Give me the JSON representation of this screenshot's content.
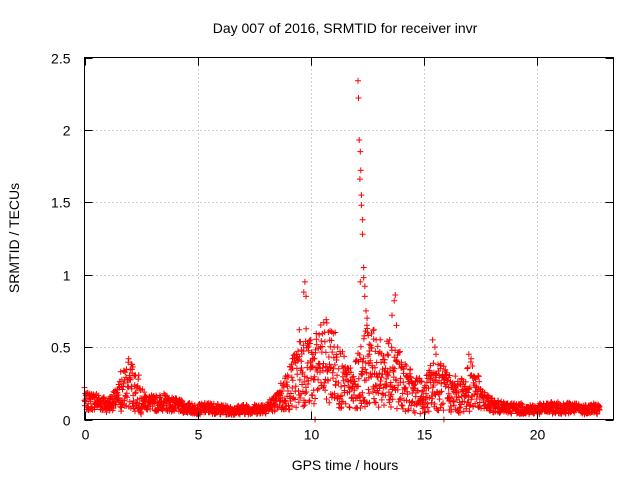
{
  "chart_data": {
    "type": "scatter",
    "title": "Day 007 of 2016, SRMTID for receiver invr",
    "xlabel": "GPS time / hours",
    "ylabel": "SRMTID / TECUs",
    "xlim": [
      0,
      23.4
    ],
    "ylim": [
      0,
      2.5
    ],
    "xticks": [
      0,
      5,
      10,
      15,
      20
    ],
    "yticks": [
      0,
      0.5,
      1,
      1.5,
      2,
      2.5
    ],
    "xtick_labels": [
      "0",
      "5",
      "10",
      "15",
      "20"
    ],
    "ytick_labels": [
      "0",
      "0.5",
      "1",
      "1.5",
      "2",
      "2.5"
    ],
    "grid": true,
    "marker": "+",
    "color": "#ff0000",
    "series": [
      {
        "name": "SRMTID",
        "profile": [
          [
            0.0,
            0.12
          ],
          [
            0.5,
            0.13
          ],
          [
            1.0,
            0.1
          ],
          [
            1.5,
            0.15
          ],
          [
            1.8,
            0.22
          ],
          [
            2.0,
            0.25
          ],
          [
            2.3,
            0.2
          ],
          [
            2.6,
            0.13
          ],
          [
            3.0,
            0.11
          ],
          [
            3.5,
            0.12
          ],
          [
            4.0,
            0.1
          ],
          [
            4.5,
            0.08
          ],
          [
            5.0,
            0.07
          ],
          [
            5.5,
            0.08
          ],
          [
            6.0,
            0.07
          ],
          [
            6.5,
            0.06
          ],
          [
            7.0,
            0.07
          ],
          [
            7.5,
            0.07
          ],
          [
            8.0,
            0.08
          ],
          [
            8.5,
            0.12
          ],
          [
            9.0,
            0.2
          ],
          [
            9.3,
            0.28
          ],
          [
            9.6,
            0.35
          ],
          [
            9.8,
            0.38
          ],
          [
            10.0,
            0.3
          ],
          [
            10.3,
            0.35
          ],
          [
            10.6,
            0.4
          ],
          [
            11.0,
            0.38
          ],
          [
            11.3,
            0.3
          ],
          [
            11.6,
            0.22
          ],
          [
            11.9,
            0.2
          ],
          [
            12.2,
            0.3
          ],
          [
            12.5,
            0.38
          ],
          [
            12.8,
            0.35
          ],
          [
            13.2,
            0.3
          ],
          [
            13.6,
            0.35
          ],
          [
            13.9,
            0.28
          ],
          [
            14.2,
            0.22
          ],
          [
            14.6,
            0.18
          ],
          [
            15.0,
            0.15
          ],
          [
            15.3,
            0.22
          ],
          [
            15.6,
            0.25
          ],
          [
            16.0,
            0.2
          ],
          [
            16.5,
            0.15
          ],
          [
            16.9,
            0.2
          ],
          [
            17.2,
            0.25
          ],
          [
            17.5,
            0.15
          ],
          [
            18.0,
            0.1
          ],
          [
            18.5,
            0.08
          ],
          [
            19.0,
            0.08
          ],
          [
            19.5,
            0.07
          ],
          [
            20.0,
            0.07
          ],
          [
            20.5,
            0.08
          ],
          [
            21.0,
            0.08
          ],
          [
            21.5,
            0.08
          ],
          [
            22.0,
            0.07
          ],
          [
            22.5,
            0.08
          ],
          [
            22.8,
            0.07
          ]
        ],
        "spikes": [
          [
            9.5,
            0.62
          ],
          [
            9.6,
            0.48
          ],
          [
            9.7,
            0.88
          ],
          [
            9.75,
            0.95
          ],
          [
            9.8,
            0.85
          ],
          [
            10.0,
            0.55
          ],
          [
            10.1,
            0.45
          ],
          [
            11.5,
            0.2
          ],
          [
            12.1,
            2.34
          ],
          [
            12.12,
            2.22
          ],
          [
            12.15,
            1.93
          ],
          [
            12.2,
            1.85
          ],
          [
            12.22,
            1.72
          ],
          [
            12.18,
            1.66
          ],
          [
            12.25,
            1.55
          ],
          [
            12.25,
            1.48
          ],
          [
            12.3,
            1.38
          ],
          [
            12.3,
            1.28
          ],
          [
            12.35,
            1.05
          ],
          [
            12.35,
            0.98
          ],
          [
            12.4,
            0.92
          ],
          [
            12.4,
            0.85
          ],
          [
            12.45,
            0.75
          ],
          [
            12.5,
            0.7
          ],
          [
            12.55,
            0.58
          ],
          [
            12.6,
            0.52
          ],
          [
            12.8,
            0.62
          ],
          [
            12.9,
            0.55
          ],
          [
            13.5,
            0.55
          ],
          [
            13.6,
            0.72
          ],
          [
            13.7,
            0.82
          ],
          [
            13.75,
            0.86
          ],
          [
            13.8,
            0.65
          ],
          [
            15.4,
            0.55
          ],
          [
            15.5,
            0.5
          ],
          [
            15.55,
            0.45
          ],
          [
            17.0,
            0.45
          ],
          [
            17.1,
            0.42
          ],
          [
            12.2,
            0.95
          ],
          [
            12.3,
            0.4
          ],
          [
            12.6,
            0.45
          ],
          [
            14.1,
            0.35
          ],
          [
            2.1,
            0.38
          ],
          [
            1.6,
            0.33
          ],
          [
            0.0,
            0.22
          ],
          [
            8.9,
            0.3
          ],
          [
            9.2,
            0.42
          ],
          [
            10.2,
            0.0
          ],
          [
            15.9,
            0.0
          ],
          [
            11.2,
            0.5
          ],
          [
            13.4,
            0.45
          ],
          [
            16.4,
            0.3
          ],
          [
            9.9,
            0.5
          ]
        ]
      }
    ]
  }
}
